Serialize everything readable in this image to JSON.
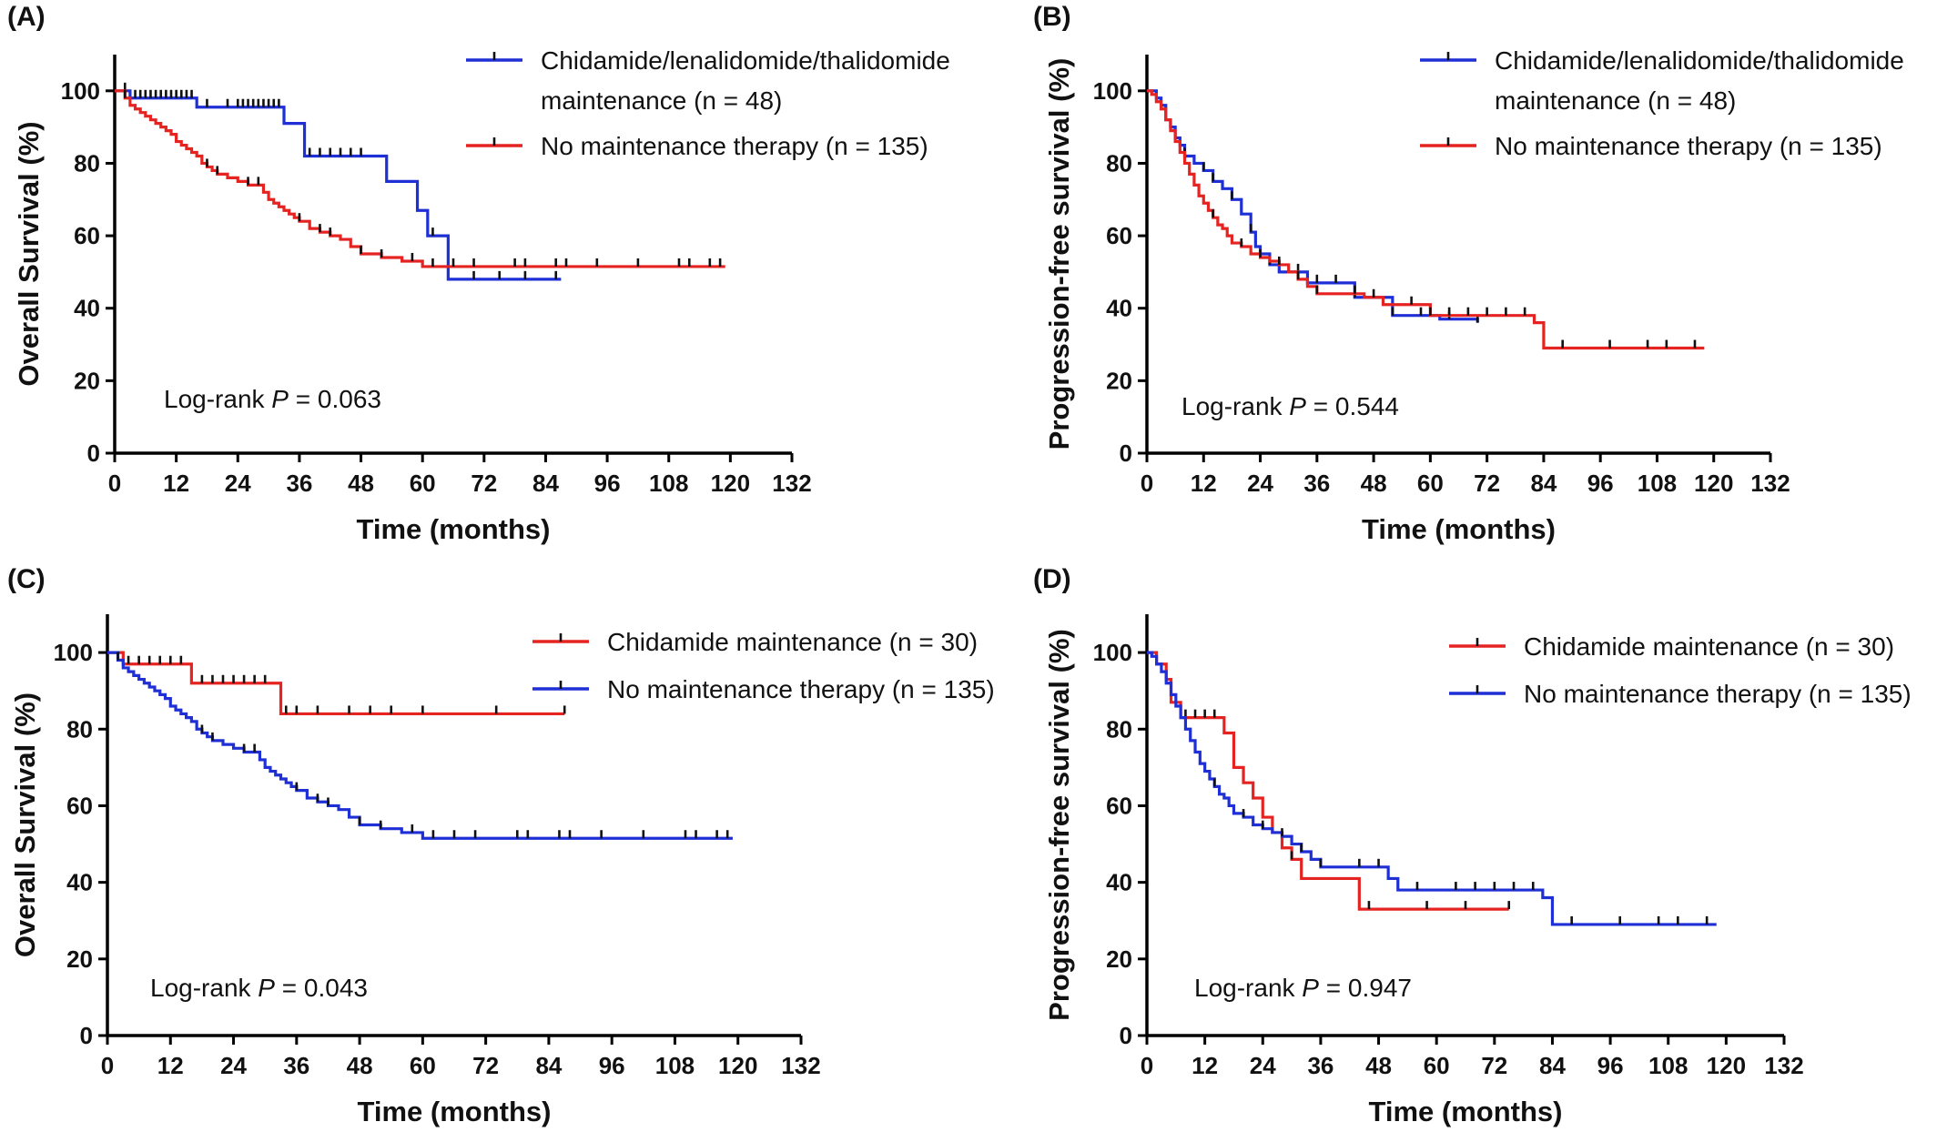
{
  "chart_data": [
    {
      "panel": "(A)",
      "type": "line",
      "step": true,
      "xlabel": "Time (months)",
      "ylabel": "Overall Survival (%)",
      "xlim": [
        0,
        132
      ],
      "ylim": [
        0,
        110
      ],
      "xticks": [
        0,
        12,
        24,
        36,
        48,
        60,
        72,
        84,
        96,
        108,
        120,
        132
      ],
      "yticks": [
        0,
        20,
        40,
        60,
        80,
        100
      ],
      "annotation": {
        "prefix": "Log-rank ",
        "p_label": "P",
        "suffix": " = 0.063"
      },
      "series": [
        {
          "name": "Chidamide/lenalidomide/thalidomide maintenance (n = 48)",
          "legend_lines": [
            "Chidamide/lenalidomide/thalidomide",
            "maintenance (n = 48)"
          ],
          "color": "#1f2fd6",
          "x": [
            0,
            3,
            16,
            33,
            37,
            53,
            59,
            61,
            65,
            87
          ],
          "y": [
            100,
            98,
            95.5,
            91,
            82,
            75,
            67,
            60,
            48,
            48
          ],
          "censor_x": [
            2,
            4,
            5,
            6,
            7,
            8,
            9,
            10,
            11,
            12,
            13,
            14,
            15,
            18,
            22,
            24,
            25,
            26,
            27,
            28,
            29,
            30,
            31,
            32,
            38,
            40,
            42,
            44,
            46,
            48,
            62,
            70,
            75,
            80,
            86
          ]
        },
        {
          "name": "No maintenance therapy (n = 135)",
          "legend_lines": [
            "No maintenance therapy (n = 135)"
          ],
          "color": "#e52421",
          "x": [
            0,
            2,
            3,
            4,
            5,
            6,
            7,
            8,
            9,
            10,
            11,
            12,
            13,
            14,
            15,
            16,
            17,
            18,
            19,
            20,
            22,
            24,
            26,
            29,
            30,
            31,
            32,
            33,
            34,
            35,
            36,
            38,
            40,
            42,
            44,
            46,
            48,
            52,
            56,
            60,
            119
          ],
          "y": [
            100,
            98,
            96,
            95,
            94,
            93,
            92,
            91,
            90,
            89,
            88,
            86,
            85,
            84,
            83,
            82,
            80,
            79,
            78,
            77,
            76,
            75,
            74,
            72,
            70,
            69,
            68,
            67,
            66,
            65,
            64,
            62,
            61,
            60,
            59,
            57,
            55,
            54,
            53,
            51.5,
            51.5
          ],
          "censor_x": [
            2,
            18,
            20,
            26,
            28,
            36,
            40,
            42,
            48,
            52,
            58,
            62,
            66,
            70,
            78,
            80,
            86,
            88,
            94,
            102,
            110,
            112,
            116,
            118
          ]
        }
      ]
    },
    {
      "panel": "(B)",
      "type": "line",
      "step": true,
      "xlabel": "Time (months)",
      "ylabel": "Progression-free  survival (%)",
      "xlim": [
        0,
        132
      ],
      "ylim": [
        0,
        110
      ],
      "xticks": [
        0,
        12,
        24,
        36,
        48,
        60,
        72,
        84,
        96,
        108,
        120,
        132
      ],
      "yticks": [
        0,
        20,
        40,
        60,
        80,
        100
      ],
      "annotation": {
        "prefix": "Log-rank ",
        "p_label": "P",
        "suffix": " = 0.544"
      },
      "series": [
        {
          "name": "Chidamide/lenalidomide/thalidomide maintenance (n = 48)",
          "legend_lines": [
            "Chidamide/lenalidomide/thalidomide",
            "maintenance (n = 48)"
          ],
          "color": "#1f2fd6",
          "x": [
            0,
            2,
            3,
            4,
            5,
            6,
            7,
            8,
            10,
            12,
            14,
            16,
            18,
            20,
            22,
            23,
            24,
            26,
            28,
            34,
            44,
            52,
            62,
            70
          ],
          "y": [
            100,
            98,
            96,
            92,
            90,
            87,
            85,
            82,
            80,
            78,
            75,
            73,
            70,
            66,
            61,
            57,
            55,
            52,
            50,
            47,
            43,
            38,
            37,
            36
          ],
          "censor_x": [
            8,
            12,
            14,
            18,
            22,
            26,
            32,
            36,
            40,
            44,
            52,
            58,
            64,
            70
          ]
        },
        {
          "name": "No maintenance therapy (n = 135)",
          "legend_lines": [
            "No maintenance therapy (n = 135)"
          ],
          "color": "#e52421",
          "x": [
            0,
            1,
            2,
            3,
            4,
            5,
            6,
            7,
            8,
            9,
            10,
            11,
            12,
            13,
            14,
            15,
            16,
            17,
            18,
            20,
            22,
            24,
            26,
            28,
            30,
            32,
            34,
            36,
            42,
            46,
            50,
            60,
            82,
            84,
            118
          ],
          "y": [
            100,
            99,
            97,
            95,
            92,
            89,
            86,
            83,
            80,
            77,
            74,
            71,
            69,
            67,
            65,
            63,
            62,
            60,
            58,
            57,
            55,
            54,
            53,
            52,
            50,
            48,
            46,
            44,
            44,
            43,
            41,
            38,
            36,
            29,
            29
          ],
          "censor_x": [
            14,
            20,
            24,
            28,
            32,
            36,
            44,
            48,
            56,
            60,
            64,
            68,
            72,
            76,
            80,
            88,
            98,
            106,
            110,
            116
          ]
        }
      ]
    },
    {
      "panel": "(C)",
      "type": "line",
      "step": true,
      "xlabel": "Time (months)",
      "ylabel": "Overall Survival (%)",
      "xlim": [
        0,
        132
      ],
      "ylim": [
        0,
        110
      ],
      "xticks": [
        0,
        12,
        24,
        36,
        48,
        60,
        72,
        84,
        96,
        108,
        120,
        132
      ],
      "yticks": [
        0,
        20,
        40,
        60,
        80,
        100
      ],
      "annotation": {
        "prefix": "Log-rank ",
        "p_label": "P",
        "suffix": " = 0.043"
      },
      "series": [
        {
          "name": "Chidamide maintenance (n = 30)",
          "legend_lines": [
            "Chidamide maintenance (n = 30)"
          ],
          "color": "#e52421",
          "x": [
            0,
            3,
            16,
            33,
            87
          ],
          "y": [
            100,
            97,
            92,
            84,
            84
          ],
          "censor_x": [
            4,
            6,
            8,
            10,
            12,
            14,
            18,
            20,
            22,
            24,
            26,
            28,
            30,
            34,
            36,
            40,
            46,
            50,
            54,
            60,
            74,
            87
          ]
        },
        {
          "name": "No maintenance therapy (n = 135)",
          "legend_lines": [
            "No maintenance therapy (n = 135)"
          ],
          "color": "#1f2fd6",
          "x": [
            0,
            2,
            3,
            4,
            5,
            6,
            7,
            8,
            9,
            10,
            11,
            12,
            13,
            14,
            15,
            16,
            17,
            18,
            19,
            20,
            22,
            24,
            26,
            29,
            30,
            31,
            32,
            33,
            34,
            35,
            36,
            38,
            40,
            42,
            44,
            46,
            48,
            52,
            56,
            60,
            119
          ],
          "y": [
            100,
            98,
            96,
            95,
            94,
            93,
            92,
            91,
            90,
            89,
            88,
            86,
            85,
            84,
            83,
            82,
            80,
            79,
            78,
            77,
            76,
            75,
            74,
            72,
            70,
            69,
            68,
            67,
            66,
            65,
            64,
            62,
            61,
            60,
            59,
            57,
            55,
            54,
            53,
            51.5,
            51.5
          ],
          "censor_x": [
            2,
            18,
            20,
            26,
            28,
            36,
            40,
            42,
            48,
            52,
            58,
            62,
            66,
            70,
            78,
            80,
            86,
            88,
            94,
            102,
            110,
            112,
            116,
            118
          ]
        }
      ]
    },
    {
      "panel": "(D)",
      "type": "line",
      "step": true,
      "xlabel": "Time (months)",
      "ylabel": "Progression-free  survival (%)",
      "xlim": [
        0,
        132
      ],
      "ylim": [
        0,
        110
      ],
      "xticks": [
        0,
        12,
        24,
        36,
        48,
        60,
        72,
        84,
        96,
        108,
        120,
        132
      ],
      "yticks": [
        0,
        20,
        40,
        60,
        80,
        100
      ],
      "annotation": {
        "prefix": "Log-rank ",
        "p_label": "P",
        "suffix": " = 0.947"
      },
      "series": [
        {
          "name": "Chidamide maintenance (n = 30)",
          "legend_lines": [
            "Chidamide maintenance (n = 30)"
          ],
          "color": "#e52421",
          "x": [
            0,
            2,
            4,
            5,
            7,
            11,
            16,
            18,
            20,
            22,
            24,
            26,
            28,
            30,
            32,
            36,
            44,
            75
          ],
          "y": [
            100,
            97,
            93,
            87,
            83,
            83,
            79,
            70,
            66,
            62,
            57,
            53,
            49,
            46,
            41,
            41,
            33,
            33
          ],
          "censor_x": [
            8,
            10,
            12,
            14,
            30,
            46,
            58,
            66,
            75
          ]
        },
        {
          "name": "No maintenance therapy (n = 135)",
          "legend_lines": [
            "No maintenance therapy (n = 135)"
          ],
          "color": "#1f2fd6",
          "x": [
            0,
            1,
            2,
            3,
            4,
            5,
            6,
            7,
            8,
            9,
            10,
            11,
            12,
            13,
            14,
            15,
            16,
            17,
            18,
            20,
            22,
            24,
            26,
            28,
            30,
            32,
            34,
            36,
            48,
            50,
            52,
            60,
            82,
            84,
            118
          ],
          "y": [
            100,
            99,
            97,
            95,
            92,
            89,
            86,
            83,
            80,
            77,
            74,
            71,
            69,
            67,
            65,
            63,
            62,
            60,
            58,
            57,
            55,
            54,
            53,
            52,
            50,
            48,
            46,
            44,
            44,
            41,
            38,
            38,
            36,
            29,
            29
          ],
          "censor_x": [
            14,
            20,
            24,
            28,
            32,
            36,
            44,
            48,
            56,
            64,
            68,
            72,
            76,
            80,
            88,
            98,
            106,
            110,
            116
          ]
        }
      ]
    }
  ]
}
